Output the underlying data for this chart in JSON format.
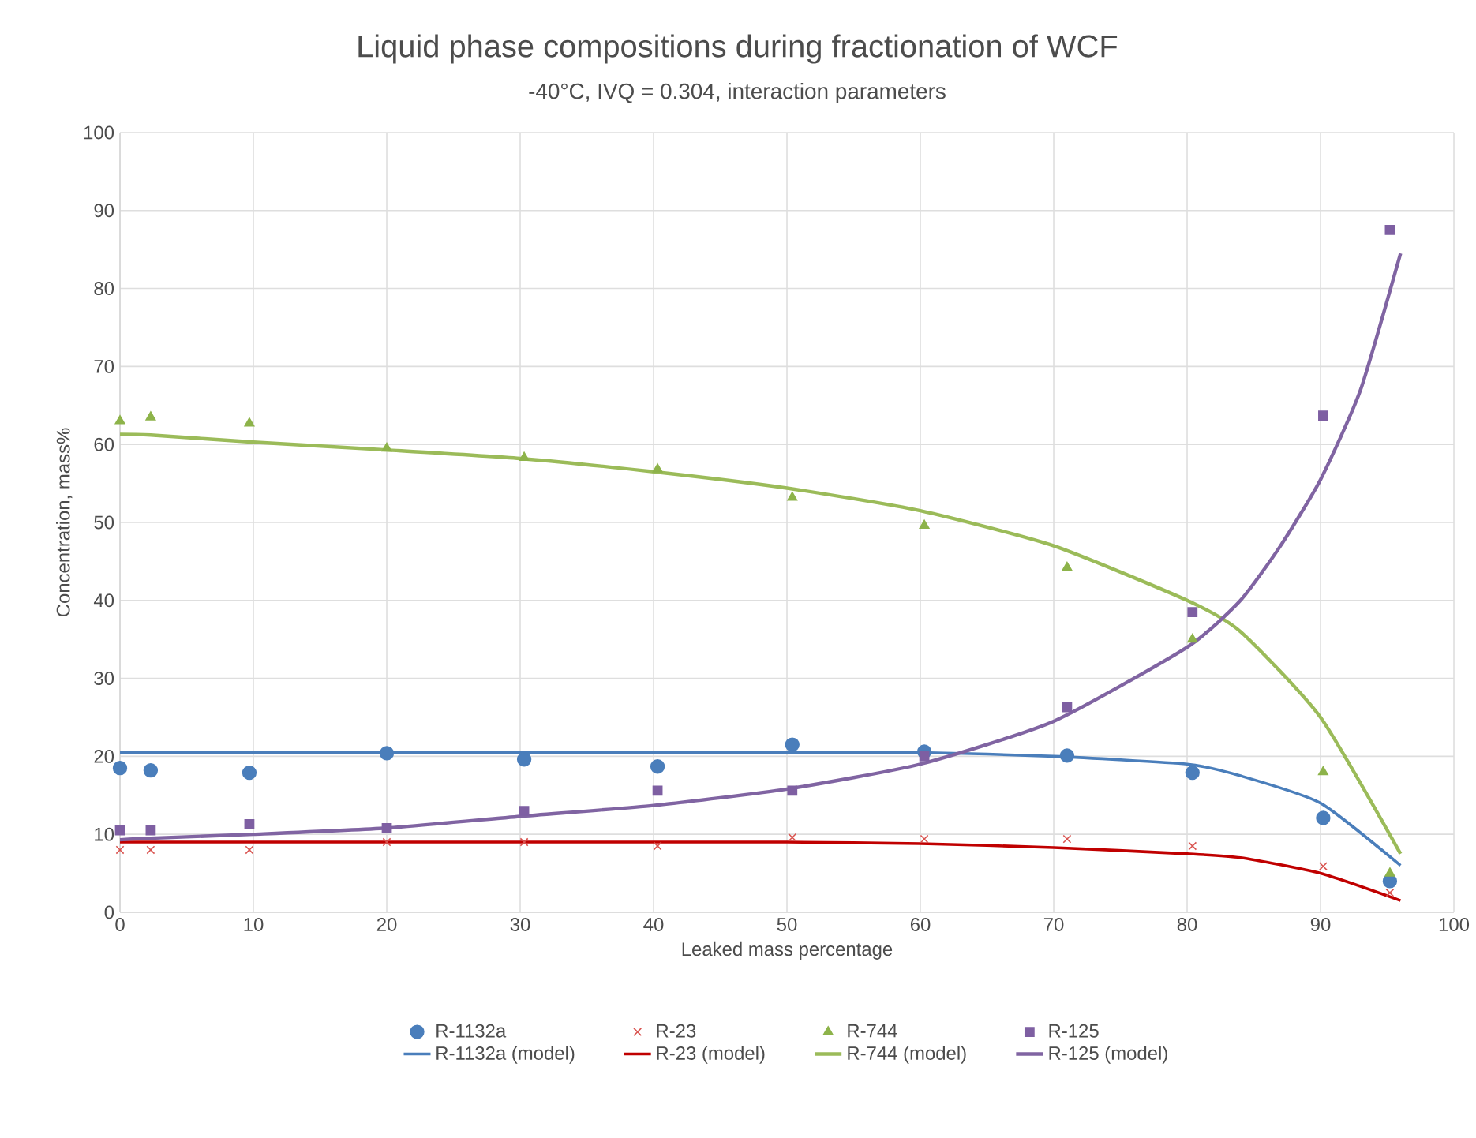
{
  "chart_data": {
    "type": "scatter",
    "title": "Liquid phase compositions during fractionation of WCF",
    "subtitle": "-40°C, IVQ = 0.304, interaction parameters",
    "xlabel": "Leaked mass percentage",
    "ylabel": "Concentration, mass%",
    "xlim": [
      0,
      100
    ],
    "ylim": [
      0,
      100
    ],
    "xticks": [
      0,
      10,
      20,
      30,
      40,
      50,
      60,
      70,
      80,
      90,
      100
    ],
    "yticks": [
      0,
      10,
      20,
      30,
      40,
      50,
      60,
      70,
      80,
      90,
      100
    ],
    "grid": true,
    "legend": "bottom",
    "series": [
      {
        "name": "R-1132a",
        "marker": "circle",
        "color": "#4a7ebb",
        "x": [
          0,
          2.3,
          9.7,
          20,
          30.3,
          40.3,
          50.4,
          60.3,
          71,
          80.4,
          90.2,
          95.2
        ],
        "values": [
          18.5,
          18.2,
          17.9,
          20.4,
          19.6,
          18.7,
          21.5,
          20.6,
          20.1,
          17.9,
          12.1,
          4
        ]
      },
      {
        "name": "R-23",
        "marker": "cross",
        "color": "#d9534f",
        "x": [
          0,
          2.3,
          9.7,
          20,
          30.3,
          40.3,
          50.4,
          60.3,
          71,
          80.4,
          90.2,
          95.2
        ],
        "values": [
          8,
          8,
          8,
          9,
          9,
          8.5,
          9.6,
          9.4,
          9.4,
          8.5,
          5.9,
          2.5
        ]
      },
      {
        "name": "R-744",
        "marker": "triangle",
        "color": "#8db34a",
        "x": [
          0,
          2.3,
          9.7,
          20,
          30.3,
          40.3,
          50.4,
          60.3,
          71,
          80.4,
          90.2,
          95.2
        ],
        "values": [
          63,
          63.5,
          62.7,
          59.5,
          58.3,
          56.8,
          53.2,
          49.6,
          44.2,
          35,
          18,
          5
        ]
      },
      {
        "name": "R-125",
        "marker": "square",
        "color": "#7e5fa2",
        "x": [
          0,
          2.3,
          9.7,
          20,
          30.3,
          40.3,
          50.4,
          60.3,
          71,
          80.4,
          90.2,
          95.2
        ],
        "values": [
          10.5,
          10.5,
          11.3,
          10.8,
          13,
          15.6,
          15.6,
          20,
          26.3,
          38.5,
          63.7,
          87.5
        ]
      },
      {
        "name": "R-1132a (model)",
        "type": "line",
        "color": "#4a7ebb",
        "x": [
          0,
          10,
          20,
          30,
          40,
          50,
          60,
          70,
          80,
          84,
          90,
          96
        ],
        "values": [
          20.5,
          20.5,
          20.5,
          20.5,
          20.5,
          20.5,
          20.5,
          20,
          19,
          17.5,
          14,
          6
        ]
      },
      {
        "name": "R-23 (model)",
        "type": "line",
        "color": "#c00000",
        "x": [
          0,
          10,
          20,
          30,
          40,
          50,
          60,
          70,
          80,
          84,
          90,
          96
        ],
        "values": [
          9,
          9,
          9,
          9,
          9,
          9,
          8.8,
          8.3,
          7.5,
          7,
          5,
          1.5
        ]
      },
      {
        "name": "R-744 (model)",
        "type": "line",
        "color": "#9bbb59",
        "x": [
          0,
          2.3,
          10,
          20,
          30,
          40,
          50,
          60,
          70,
          80,
          84,
          90,
          96
        ],
        "values": [
          61.3,
          61.2,
          60.3,
          59.3,
          58.2,
          56.5,
          54.4,
          51.5,
          47,
          40,
          36,
          25,
          7.5
        ]
      },
      {
        "name": "R-125 (model)",
        "type": "line",
        "color": "#8064a2",
        "x": [
          0,
          2.3,
          10,
          20,
          30,
          40,
          50,
          60,
          70,
          80,
          84,
          87,
          90,
          93,
          96
        ],
        "values": [
          9.3,
          9.5,
          10,
          10.8,
          12.3,
          13.7,
          15.8,
          19,
          24.5,
          34,
          40,
          47,
          55.5,
          67,
          84.5
        ]
      }
    ]
  }
}
